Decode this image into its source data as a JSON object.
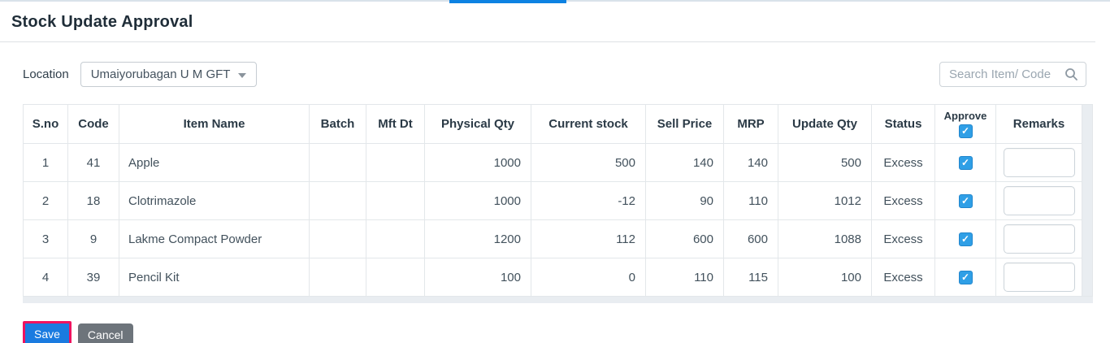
{
  "page": {
    "title": "Stock Update Approval"
  },
  "toolbar": {
    "location_label": "Location",
    "location_value": "Umaiyorubagan U M GFT",
    "search_placeholder": "Search Item/ Code"
  },
  "table": {
    "headers": [
      "S.no",
      "Code",
      "Item Name",
      "Batch",
      "Mft Dt",
      "Physical Qty",
      "Current stock",
      "Sell Price",
      "MRP",
      "Update Qty",
      "Status",
      "Approve",
      "Remarks"
    ],
    "approve_all_checked": true,
    "rows": [
      {
        "sno": "1",
        "code": "41",
        "item": "Apple",
        "batch": "",
        "mft": "",
        "physical": "1000",
        "current": "500",
        "sell": "140",
        "mrp": "140",
        "update": "500",
        "status": "Excess",
        "approved": true,
        "remarks": ""
      },
      {
        "sno": "2",
        "code": "18",
        "item": "Clotrimazole",
        "batch": "",
        "mft": "",
        "physical": "1000",
        "current": "-12",
        "sell": "90",
        "mrp": "110",
        "update": "1012",
        "status": "Excess",
        "approved": true,
        "remarks": ""
      },
      {
        "sno": "3",
        "code": "9",
        "item": "Lakme Compact Powder",
        "batch": "",
        "mft": "",
        "physical": "1200",
        "current": "112",
        "sell": "600",
        "mrp": "600",
        "update": "1088",
        "status": "Excess",
        "approved": true,
        "remarks": ""
      },
      {
        "sno": "4",
        "code": "39",
        "item": "Pencil Kit",
        "batch": "",
        "mft": "",
        "physical": "100",
        "current": "0",
        "sell": "110",
        "mrp": "115",
        "update": "100",
        "status": "Excess",
        "approved": true,
        "remarks": ""
      }
    ]
  },
  "buttons": {
    "save": "Save",
    "cancel": "Cancel"
  },
  "icons": {
    "dropdown_caret": "caret-down-icon",
    "search": "search-icon",
    "check": "✓"
  },
  "colors": {
    "accent_bar": "#0d82e2",
    "save_bg": "#1a7be0",
    "save_outline": "#ef135f",
    "cancel_bg": "#6d747b",
    "checkbox_blue": "#2f9fe6",
    "table_border": "#e3e7ea",
    "scrollbar_track": "#e9edf1"
  }
}
